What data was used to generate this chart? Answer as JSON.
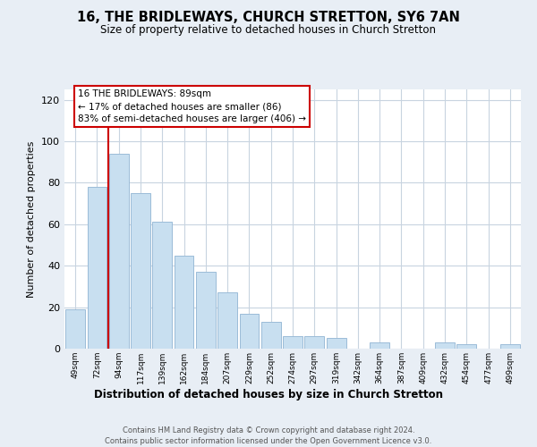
{
  "title": "16, THE BRIDLEWAYS, CHURCH STRETTON, SY6 7AN",
  "subtitle": "Size of property relative to detached houses in Church Stretton",
  "xlabel": "Distribution of detached houses by size in Church Stretton",
  "ylabel": "Number of detached properties",
  "bar_labels": [
    "49sqm",
    "72sqm",
    "94sqm",
    "117sqm",
    "139sqm",
    "162sqm",
    "184sqm",
    "207sqm",
    "229sqm",
    "252sqm",
    "274sqm",
    "297sqm",
    "319sqm",
    "342sqm",
    "364sqm",
    "387sqm",
    "409sqm",
    "432sqm",
    "454sqm",
    "477sqm",
    "499sqm"
  ],
  "bar_values": [
    19,
    78,
    94,
    75,
    61,
    45,
    37,
    27,
    17,
    13,
    6,
    6,
    5,
    0,
    3,
    0,
    0,
    3,
    2,
    0,
    2
  ],
  "bar_color": "#c8dff0",
  "bar_edge_color": "#9bbcd8",
  "reference_line_color": "#cc0000",
  "ylim": [
    0,
    125
  ],
  "yticks": [
    0,
    20,
    40,
    60,
    80,
    100,
    120
  ],
  "annotation_title": "16 THE BRIDLEWAYS: 89sqm",
  "annotation_line1": "← 17% of detached houses are smaller (86)",
  "annotation_line2": "83% of semi-detached houses are larger (406) →",
  "annotation_box_color": "#ffffff",
  "annotation_box_edge_color": "#cc0000",
  "footer_line1": "Contains HM Land Registry data © Crown copyright and database right 2024.",
  "footer_line2": "Contains public sector information licensed under the Open Government Licence v3.0.",
  "background_color": "#e8eef5",
  "plot_bg_color": "#ffffff",
  "grid_color": "#c8d4e0"
}
